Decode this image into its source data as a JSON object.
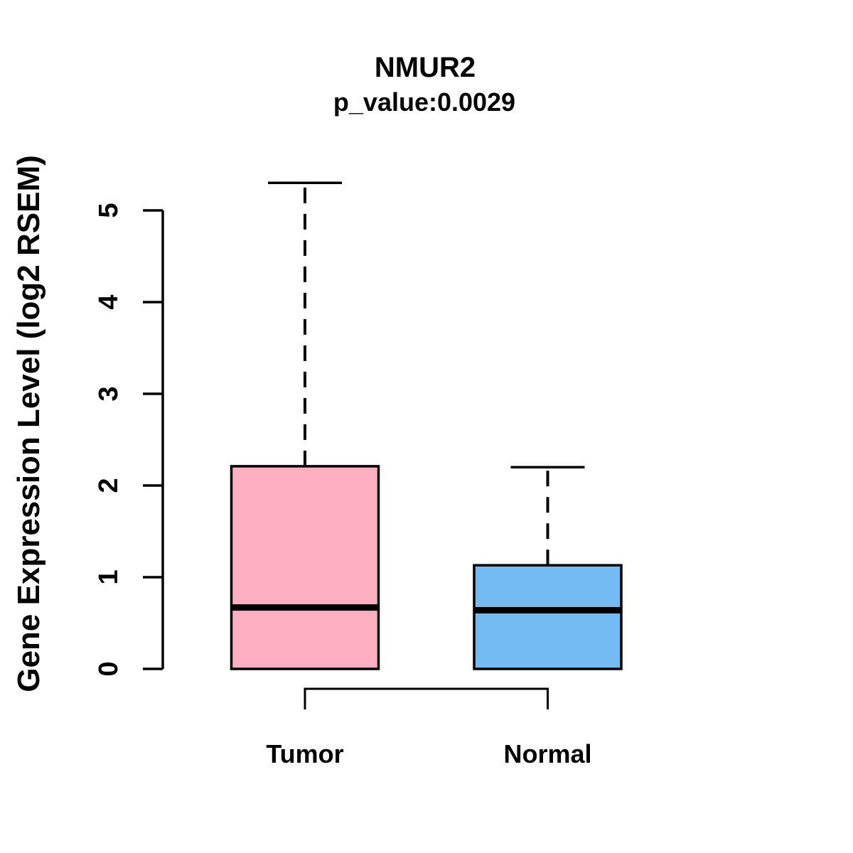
{
  "chart_data": {
    "type": "boxplot",
    "title": "NMUR2",
    "subtitle": "p_value:0.0029",
    "ylabel": "Gene Expression Level (log2 RSEM)",
    "xlabel": "",
    "ylim": [
      0,
      5.35
    ],
    "yticks": [
      "0",
      "1",
      "2",
      "3",
      "4",
      "5"
    ],
    "ytick_values": [
      0,
      1,
      2,
      3,
      4,
      5
    ],
    "grid": false,
    "legend": "none",
    "categories": [
      "Tumor",
      "Normal"
    ],
    "series": [
      {
        "name": "Tumor",
        "box_color": "#FDAEC0",
        "stats": {
          "whisker_low": 0,
          "q1": 0,
          "median": 0.67,
          "q3": 2.21,
          "whisker_high": 5.3
        }
      },
      {
        "name": "Normal",
        "box_color": "#73BBF2",
        "stats": {
          "whisker_low": 0,
          "q1": 0,
          "median": 0.64,
          "q3": 1.13,
          "whisker_high": 2.2
        }
      }
    ],
    "annotations": {
      "comparison_bracket": {
        "from": "Tumor",
        "to": "Normal"
      }
    },
    "colors": {
      "axis": "#000000",
      "box_border": "#000000",
      "median_line": "#000000",
      "whisker": "#000000",
      "bracket": "#000000",
      "background": "#ffffff"
    }
  }
}
